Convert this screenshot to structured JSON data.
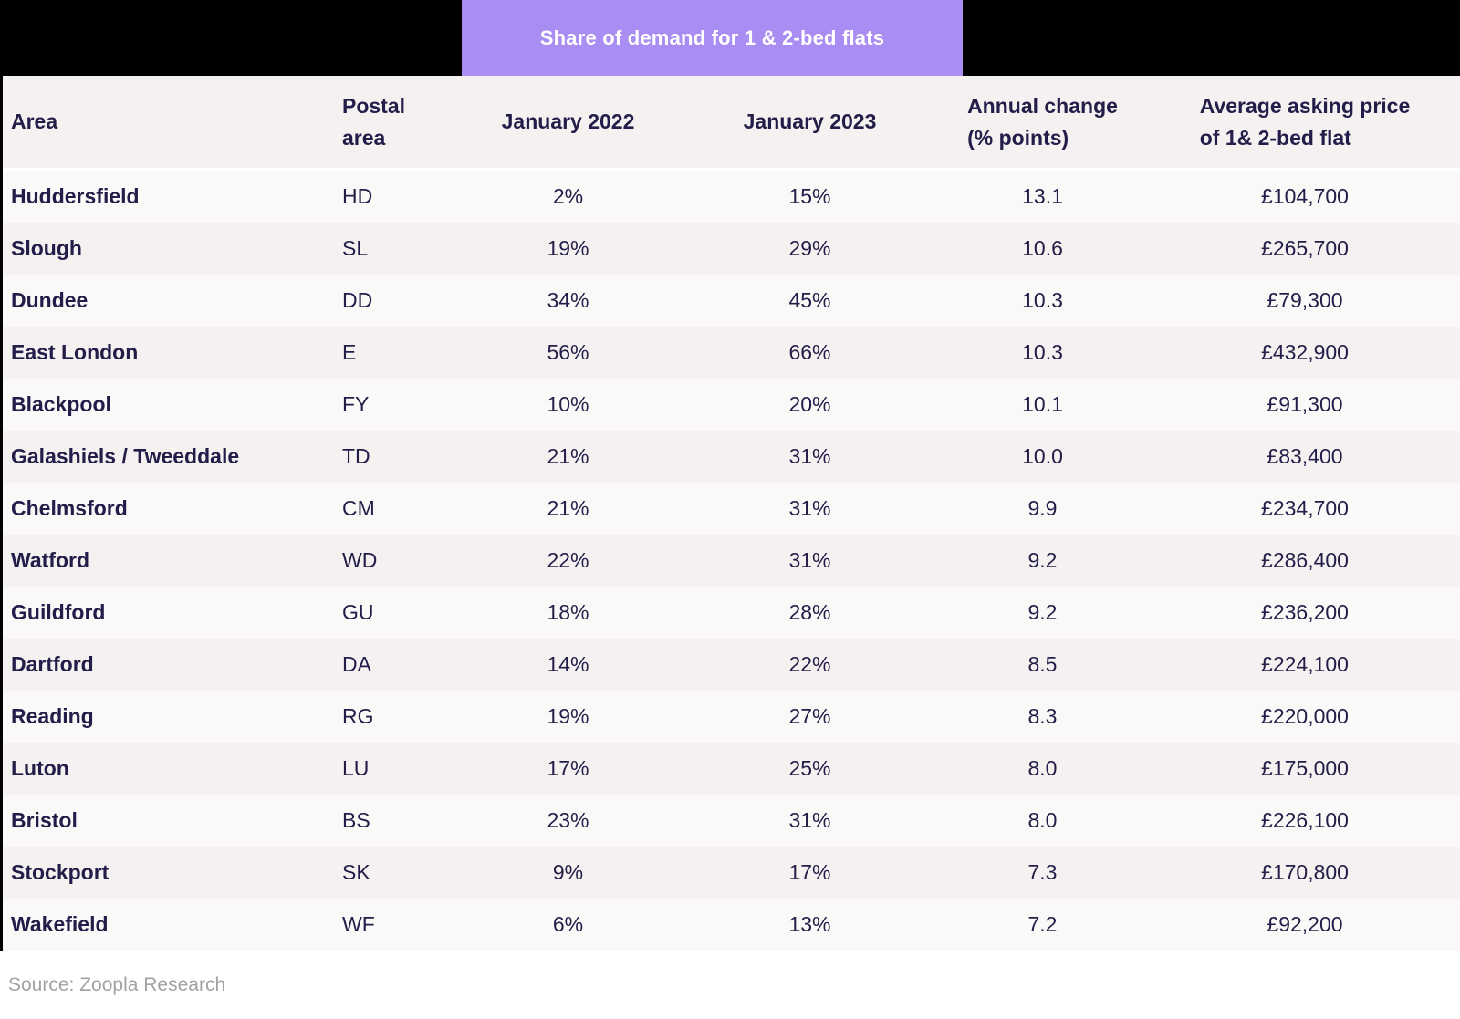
{
  "badge": {
    "label": "Share of demand for 1 & 2-bed flats",
    "bg_color": "#aa8df2",
    "text_color": "#ffffff"
  },
  "header": {
    "columns": [
      {
        "label": "Area"
      },
      {
        "label": "Postal\narea"
      },
      {
        "label": "January 2022"
      },
      {
        "label": "January 2023"
      },
      {
        "label": "Annual change\n(% points)"
      },
      {
        "label": "Average asking price\nof 1& 2-bed flat"
      }
    ]
  },
  "chart_data": {
    "type": "table",
    "title": "Share of demand for 1 & 2-bed flats",
    "columns": [
      "Area",
      "Postal area",
      "January 2022",
      "January 2023",
      "Annual change (% points)",
      "Average asking price of 1& 2-bed flat"
    ],
    "rows": [
      {
        "area": "Huddersfield",
        "postal_area": "HD",
        "jan_2022": "2%",
        "jan_2023": "15%",
        "annual_change": "13.1",
        "avg_price": "£104,700"
      },
      {
        "area": "Slough",
        "postal_area": "SL",
        "jan_2022": "19%",
        "jan_2023": "29%",
        "annual_change": "10.6",
        "avg_price": "£265,700"
      },
      {
        "area": "Dundee",
        "postal_area": "DD",
        "jan_2022": "34%",
        "jan_2023": "45%",
        "annual_change": "10.3",
        "avg_price": "£79,300"
      },
      {
        "area": "East London",
        "postal_area": "E",
        "jan_2022": "56%",
        "jan_2023": "66%",
        "annual_change": "10.3",
        "avg_price": "£432,900"
      },
      {
        "area": "Blackpool",
        "postal_area": "FY",
        "jan_2022": "10%",
        "jan_2023": "20%",
        "annual_change": "10.1",
        "avg_price": "£91,300"
      },
      {
        "area": "Galashiels / Tweeddale",
        "postal_area": "TD",
        "jan_2022": "21%",
        "jan_2023": "31%",
        "annual_change": "10.0",
        "avg_price": "£83,400"
      },
      {
        "area": "Chelmsford",
        "postal_area": "CM",
        "jan_2022": "21%",
        "jan_2023": "31%",
        "annual_change": "9.9",
        "avg_price": "£234,700"
      },
      {
        "area": "Watford",
        "postal_area": "WD",
        "jan_2022": "22%",
        "jan_2023": "31%",
        "annual_change": "9.2",
        "avg_price": "£286,400"
      },
      {
        "area": "Guildford",
        "postal_area": "GU",
        "jan_2022": "18%",
        "jan_2023": "28%",
        "annual_change": "9.2",
        "avg_price": "£236,200"
      },
      {
        "area": "Dartford",
        "postal_area": "DA",
        "jan_2022": "14%",
        "jan_2023": "22%",
        "annual_change": "8.5",
        "avg_price": "£224,100"
      },
      {
        "area": "Reading",
        "postal_area": "RG",
        "jan_2022": "19%",
        "jan_2023": "27%",
        "annual_change": "8.3",
        "avg_price": "£220,000"
      },
      {
        "area": "Luton",
        "postal_area": "LU",
        "jan_2022": "17%",
        "jan_2023": "25%",
        "annual_change": "8.0",
        "avg_price": "£175,000"
      },
      {
        "area": "Bristol",
        "postal_area": "BS",
        "jan_2022": "23%",
        "jan_2023": "31%",
        "annual_change": "8.0",
        "avg_price": "£226,100"
      },
      {
        "area": "Stockport",
        "postal_area": "SK",
        "jan_2022": "9%",
        "jan_2023": "17%",
        "annual_change": "7.3",
        "avg_price": "£170,800"
      },
      {
        "area": "Wakefield",
        "postal_area": "WF",
        "jan_2022": "6%",
        "jan_2023": "13%",
        "annual_change": "7.2",
        "avg_price": "£92,200"
      }
    ]
  },
  "footer": {
    "source": "Source: Zoopla Research"
  },
  "colors": {
    "accent_purple": "#aa8df2",
    "text_navy": "#231d49",
    "row_light": "#fbf9f8",
    "row_shaded": "#f4f1f0",
    "top_band": "#000000",
    "source_gray": "#a5a1a0"
  }
}
